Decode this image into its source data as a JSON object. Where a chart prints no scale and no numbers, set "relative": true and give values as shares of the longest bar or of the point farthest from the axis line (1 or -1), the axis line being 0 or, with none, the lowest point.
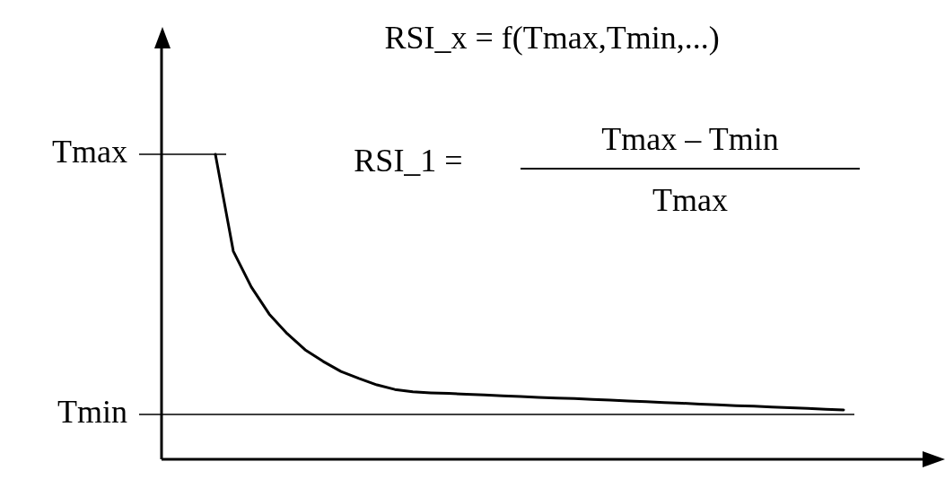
{
  "chart_data": {
    "type": "line",
    "relative": true,
    "legend": false,
    "marker": "none",
    "line_style": "solid",
    "categories": [
      null,
      null,
      null,
      null,
      null,
      null,
      null,
      null,
      null,
      null,
      null,
      null,
      null,
      null,
      null,
      null,
      null,
      null,
      null,
      null,
      null,
      null,
      null,
      null,
      null,
      null,
      null,
      null,
      null,
      null,
      null,
      null,
      null,
      null,
      null,
      null,
      null,
      null,
      null,
      null,
      null,
      null,
      null,
      null
    ],
    "series": [
      {
        "color": "#000000",
        "values": [
          null,
          null,
          null,
          1.0,
          0.682,
          0.565,
          0.476,
          0.412,
          0.359,
          0.321,
          0.288,
          0.265,
          0.244,
          0.229,
          0.221,
          0.218,
          0.216,
          0.213,
          0.211,
          0.208,
          0.206,
          0.203,
          0.201,
          0.199,
          0.196,
          0.194,
          0.191,
          0.189,
          0.186,
          0.184,
          0.181,
          0.179,
          0.176,
          0.174,
          0.171,
          0.169,
          0.167,
          0.164,
          0.162,
          null,
          null,
          null,
          null,
          null
        ]
      }
    ],
    "ref_lines": [
      {
        "axis": "y",
        "value": 1.0,
        "label": "Tmax"
      },
      {
        "axis": "y",
        "value": 0.147,
        "label": "Tmin"
      }
    ],
    "annotations": [
      "RSI_x = f(Tmax,Tmin,...)",
      "RSI_1 =",
      "Tmax – Tmin",
      "Tmax"
    ]
  }
}
